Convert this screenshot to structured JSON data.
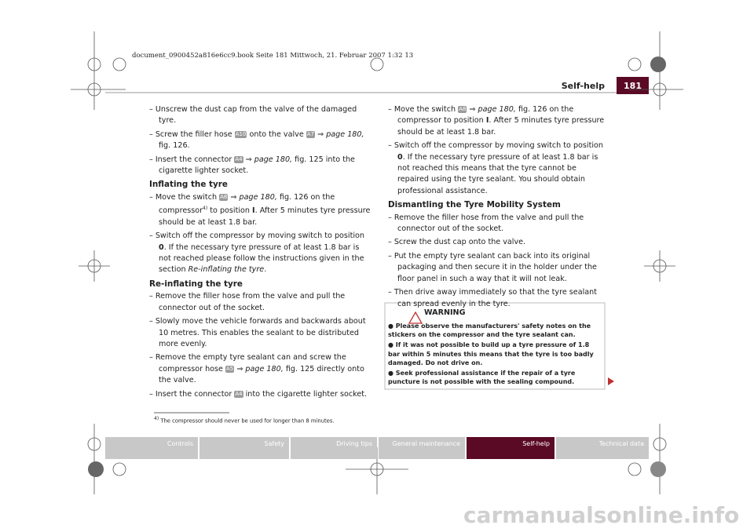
{
  "header": {
    "file_info": "document_0900452a816e6cc9.book  Seite 181  Mittwoch, 21. Februar 2007  1:32 13",
    "section": "Self-help",
    "page": "181"
  },
  "left": {
    "items_a": [
      [
        "– Unscrew the dust cap from the valve of the damaged tyre."
      ],
      [
        "– Screw the filler hose",
        "A10",
        "onto the valve",
        "A7",
        "⇒ page 180,",
        "fig. 126."
      ],
      [
        "– Insert the connector",
        "A4",
        "⇒ page 180,",
        "fig. 125 into the cigarette lighter socket."
      ]
    ],
    "heading_1": "Inflating the tyre",
    "items_b": [
      [
        "– Move the switch",
        "A8",
        "⇒ page 180,",
        "fig. 126 on the compressor",
        "4)",
        "to position",
        "I",
        ". After 5 minutes tyre pressure should be at least 1.8 bar."
      ],
      [
        "– Switch off the compressor by moving switch to position",
        "0",
        ". If the necessary tyre pressure of at least 1.8 bar is not reached please follow the instructions given in the section",
        "Re-inflating the tyre",
        "."
      ]
    ],
    "heading_2": "Re-inflating the tyre",
    "items_c": [
      [
        "– Remove the filler hose from the valve and pull the connector out of the socket."
      ],
      [
        "– Slowly move the vehicle forwards and backwards about 10 metres. This enables the sealant to be distributed more evenly."
      ],
      [
        "– Remove the empty tyre sealant can and screw the compressor hose",
        "A5",
        "⇒ page 180,",
        "fig. 125 directly onto the valve."
      ],
      [
        "– Insert the connector",
        "A4",
        "into the cigarette lighter socket."
      ]
    ]
  },
  "right": {
    "items_a": [
      [
        "– Move the switch",
        "A8",
        "⇒ page 180,",
        "fig. 126 on the compressor to position",
        "I",
        ". After 5 minutes tyre pressure should be at least 1.8 bar."
      ],
      [
        "– Switch off the compressor by moving switch to position",
        "0",
        ". If the necessary tyre pressure of at least 1.8 bar is not reached this means that the tyre cannot be repaired using the tyre sealant. You should obtain professional assistance."
      ]
    ],
    "heading": "Dismantling the Tyre Mobility System",
    "items_b": [
      [
        "– Remove the filler hose from the valve and pull the connector out of the socket."
      ],
      [
        "– Screw the dust cap onto the valve."
      ],
      [
        "– Put the empty tyre sealant can back into its original packaging and then secure it in the holder under the floor panel in such a way that it will not leak."
      ],
      [
        "– Then drive away immediately so that the tyre sealant can spread evenly in the tyre."
      ]
    ],
    "warning": {
      "title": "WARNING",
      "items": [
        "Please observe the manufacturers' safety notes on the stickers on the compressor and the tyre sealant can.",
        "If it was not possible to build up a tyre pressure of 1.8 bar within 5 minutes this means that the tyre is too badly damaged. Do not drive on.",
        "Seek professional assistance if the repair of a tyre puncture is not possible with the sealing compound."
      ]
    }
  },
  "footnote": {
    "mark": "4)",
    "text": "The compressor should never be used for longer than 8 minutes."
  },
  "nav": [
    "Controls",
    "Safety",
    "Driving tips",
    "General maintenance",
    "Self-help",
    "Technical data"
  ],
  "watermark": "carmanualsonline.info"
}
